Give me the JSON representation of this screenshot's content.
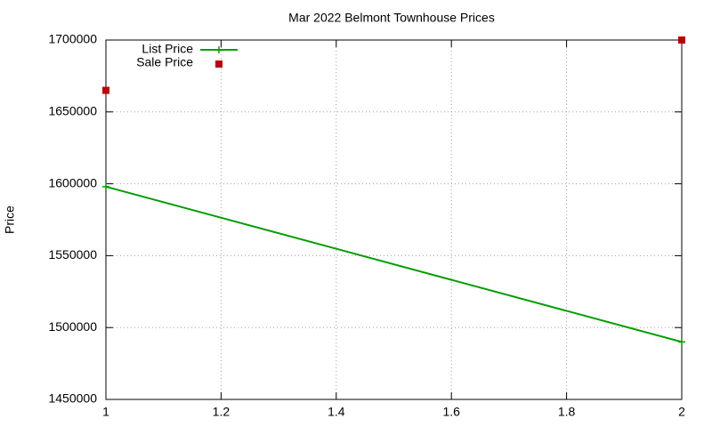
{
  "chart_data": {
    "type": "line",
    "title": "Mar 2022 Belmont Townhouse Prices",
    "y_label": "Price",
    "x": [
      1,
      2
    ],
    "series": [
      {
        "name": "List Price",
        "color": "#009e00",
        "type": "line",
        "values": [
          1598000,
          1490000
        ]
      },
      {
        "name": "Sale Price",
        "color": "#c00000",
        "type": "scatter",
        "values": [
          1665000,
          1700000
        ]
      }
    ],
    "xlim": [
      1,
      2
    ],
    "xticks": [
      1,
      1.2,
      1.4,
      1.6,
      1.8,
      2
    ],
    "ylim": [
      1450000,
      1700000
    ],
    "yticks": [
      1450000,
      1500000,
      1550000,
      1600000,
      1650000,
      1700000
    ],
    "grid": true,
    "legend": "top-left"
  }
}
